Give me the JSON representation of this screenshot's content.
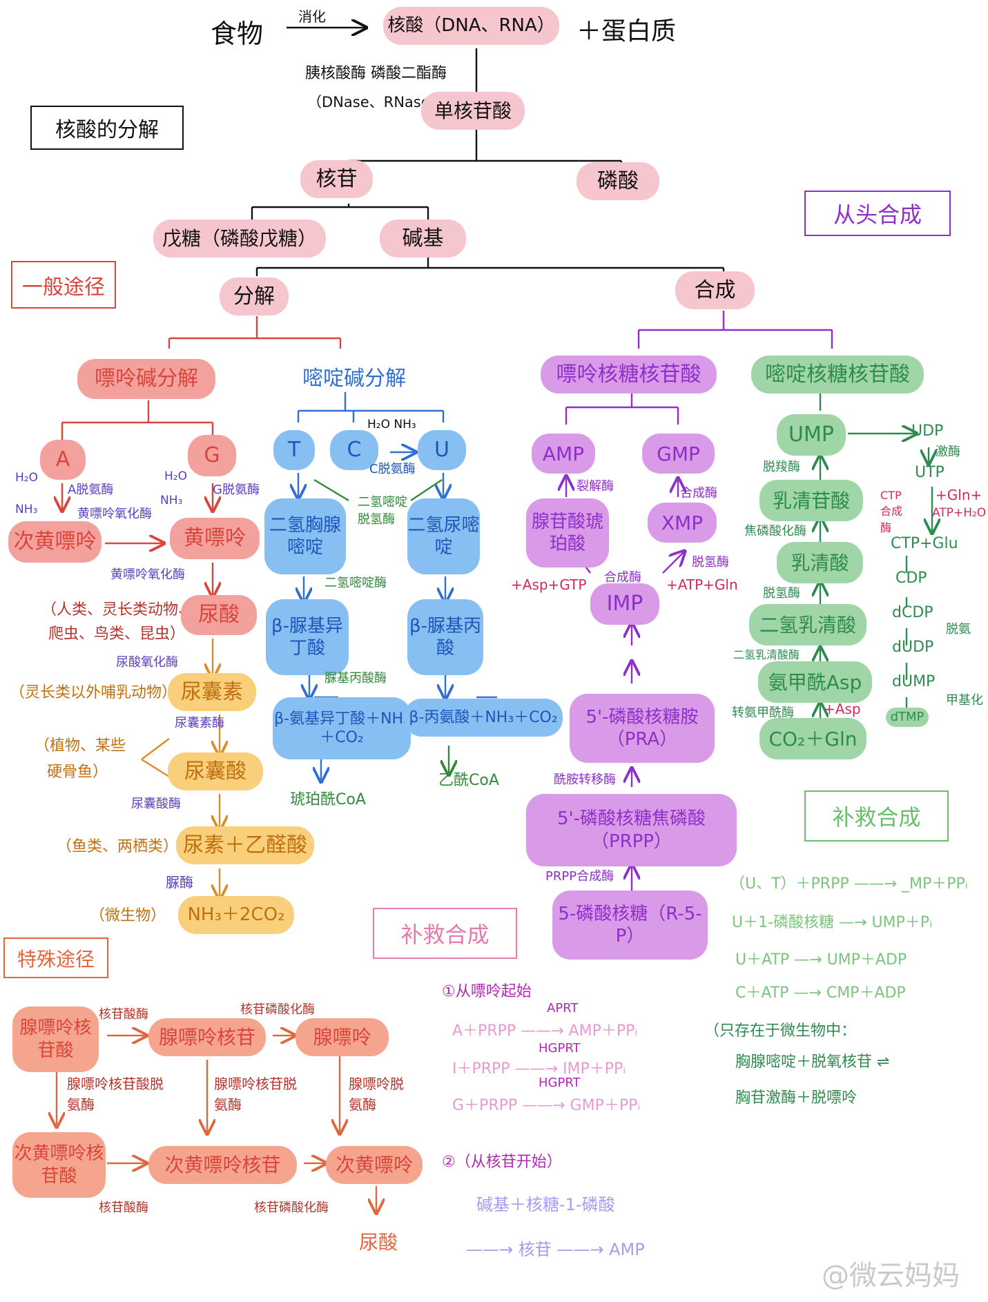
{
  "top": {
    "food": "食物",
    "digest_label": "消化",
    "nucleic_acid": "核酸（DNA、RNA）",
    "plus_protein": "＋蛋白质",
    "enzyme_line1": "胰核酸酶 磷酸二酯酶",
    "enzyme_line2": "（DNase、RNase）",
    "mononucleotide": "单核苷酸",
    "section_title": "核酸的分解",
    "nucleoside": "核苷",
    "phosphate": "磷酸",
    "pentose": "戊糖（磷酸戊糖）",
    "base": "碱基",
    "general_path": "一般途径",
    "de_novo": "从头合成",
    "degradation": "分解",
    "synthesis": "合成"
  },
  "purine": {
    "title": "嘌呤碱分解",
    "A": "A",
    "G": "G",
    "h2o_a": "H₂O",
    "nh3_a": "NH₃",
    "a_enzyme": "A脱氨酶",
    "h2o_g": "H₂O",
    "nh3_g": "NH₃",
    "g_enzyme": "G脱氨酶",
    "xo_enzyme_1": "黄嘌呤氧化酶",
    "hypoxanthine": "次黄嘌呤",
    "xanthine": "黄嘌呤",
    "xo_enzyme_2": "黄嘌呤氧化酶",
    "uric_acid": "尿酸",
    "org_primates": "（人类、灵长类动物、",
    "org_primates_2": "爬虫、鸟类、昆虫）",
    "urate_oxidase": "尿酸氧化酶",
    "org_mammals": "（灵长类以外哺乳动物）",
    "allantoin": "尿囊素",
    "allantoinase": "尿囊素酶",
    "org_fish": "（植物、某些",
    "org_fish_2": "硬骨鱼）",
    "allantoic_acid": "尿囊酸",
    "allantoicase": "尿囊酸酶",
    "org_amphibian": "（鱼类、两栖类）",
    "urea_glyoxylate": "尿素＋乙醛酸",
    "urease": "脲酶",
    "org_microbe": "（微生物）",
    "nh3_co2": "NH₃＋2CO₂"
  },
  "pyrimidine": {
    "title": "嘧啶碱分解",
    "T": "T",
    "C": "C",
    "U": "U",
    "h2o_nh3": "H₂O  NH₃",
    "c_enzyme": "C脱氨酶",
    "dihydrothymine": "二氢胸腺嘧啶",
    "dihydrouracil": "二氢尿嘧啶",
    "dpd": "二氢嘧啶脱氢酶",
    "dhp": "二氢嘧啶酶",
    "ureido_iso": "β-脲基异丁酸",
    "ureido_prop": "β-脲基丙酸",
    "ureidase": "脲基丙酸酶",
    "amino_iso": "β-氨基异丁酸＋NH₃＋CO₂",
    "ala": "β-丙氨酸＋NH₃＋CO₂",
    "succinyl": "琥珀酰CoA",
    "acetyl": "乙酰CoA"
  },
  "purine_syn": {
    "title": "嘌呤核糖核苷酸",
    "AMP": "AMP",
    "GMP": "GMP",
    "adsl": "裂解酶",
    "gmps": "合成酶",
    "adenylosucc": "腺苷酸琥珀酸",
    "XMP": "XMP",
    "impdh": "脱氢酶",
    "adss": "合成酶",
    "asp_gtp": "+Asp+GTP",
    "atp_gln": "+ATP+Gln",
    "IMP": "IMP",
    "pra": "5'-磷酸核糖胺（PRA）",
    "amidotransferase": "酰胺转移酶",
    "prpp": "5'-磷酸核糖焦磷酸（PRPP）",
    "prpp_synthase": "PRPP合成酶",
    "r5p": "5-磷酸核糖（R-5-P）"
  },
  "pyrimidine_syn": {
    "title": "嘧啶核糖核苷酸",
    "UMP": "UMP",
    "UDP": "UDP",
    "kinase": "激酶",
    "UTP": "UTP",
    "ctp_syn": "CTP合成酶",
    "gln_plus": "+Gln+",
    "atp_h2o": "ATP+H₂O",
    "ctp_glu": "CTP+Glu",
    "CDP": "CDP",
    "dCDP": "dCDP",
    "deam": "脱氨",
    "dUDP": "dUDP",
    "dUMP": "dUMP",
    "methyl": "甲基化",
    "dTMP": "dTMP",
    "decarboxylase": "脱羧酶",
    "omp": "乳清苷酸",
    "oprt": "焦磷酸化酶",
    "orotate": "乳清酸",
    "dehydrogenase": "脱氢酶",
    "dihydroorotate": "二氢乳清酸",
    "dhoase": "二氢乳清酸酶",
    "carbamoyl_asp": "氨甲酰Asp",
    "atcase": "转氨甲酰酶",
    "plus_asp": "+Asp",
    "co2_gln": "CO₂＋Gln"
  },
  "salvage_right": {
    "title": "补救合成",
    "r1": "（U、T）＋PRPP ——→ _MP＋PPᵢ",
    "r2": "U＋1-磷酸核糖 —→ UMP＋Pᵢ",
    "r3": "U＋ATP —→ UMP＋ADP",
    "r4": "C＋ATP —→ CMP＋ADP",
    "note": "（只存在于微生物中：",
    "n2": "胸腺嘧啶＋脱氧核苷 ⇌",
    "n3": "胸苷激酶＋脱嘌呤"
  },
  "salvage_mid": {
    "title": "补救合成",
    "from_purine": "①从嘌呤起始",
    "aprt": "APRT",
    "r1": "A＋PRPP ——→ AMP＋PPᵢ",
    "hgprt1": "HGPRT",
    "r2": "I＋PRPP ——→ IMP＋PPᵢ",
    "hgprt2": "HGPRT",
    "r3": "G＋PRPP ——→ GMP＋PPᵢ",
    "from_nucleoside": "②（从核苷开始）",
    "base_ribose": "碱基＋核糖-1-磷酸",
    "nucleoside_amp": "——→ 核苷 ——→ AMP"
  },
  "special": {
    "title": "特殊途径",
    "amp": "腺嘌呤核苷酸",
    "nucleotidase1": "核苷酸酶",
    "adenosine": "腺嘌呤核苷",
    "phosphorylase1": "核苷磷酸化酶",
    "adenine": "腺嘌呤",
    "ampda": "腺嘌呤核苷酸脱氨酶",
    "ada": "腺嘌呤核苷脱氨酶",
    "adenase": "腺嘌呤脱氨酶",
    "imp": "次黄嘌呤核苷酸",
    "nucleotidase2": "核苷酸酶",
    "inosine": "次黄嘌呤核苷",
    "phosphorylase2": "核苷磷酸化酶",
    "hypox": "次黄嘌呤",
    "uric": "尿酸"
  },
  "watermark": "@微云妈妈"
}
